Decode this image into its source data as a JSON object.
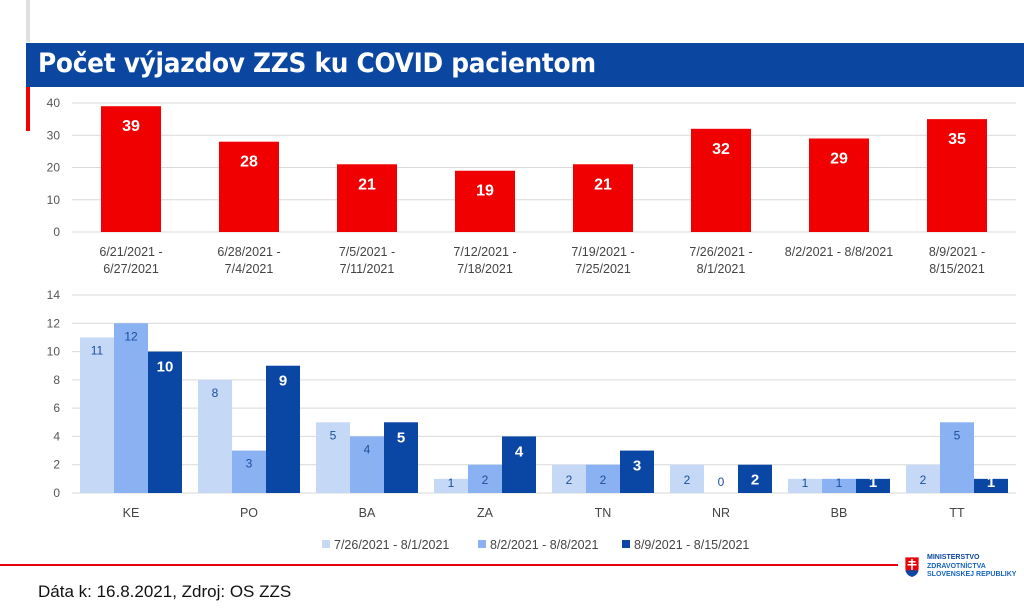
{
  "page": {
    "title": "Počet výjazdov ZZS ku COVID pacientom",
    "footer_text": "Dáta k: 16.8.2021, Zdroj: OS ZZS",
    "logo": {
      "line1": "MINISTERSTVO",
      "line2": "ZDRAVOTNÍCTVA",
      "line3": "SLOVENSKEJ REPUBLIKY",
      "icon": "slovak-coat-of-arms-icon"
    },
    "colors": {
      "title_bar": "#0b47a1",
      "accent_red": "#f00000",
      "series1": "#c5d9f7",
      "series2": "#8ab2f2",
      "series3": "#0a47a5"
    }
  },
  "chart_data": [
    {
      "type": "bar",
      "title": "Počet výjazdov ZZS ku COVID pacientom",
      "categories": [
        [
          "6/21/2021 -",
          "6/27/2021"
        ],
        [
          "6/28/2021 -",
          "7/4/2021"
        ],
        [
          "7/5/2021 -",
          "7/11/2021"
        ],
        [
          "7/12/2021 -",
          "7/18/2021"
        ],
        [
          "7/19/2021 -",
          "7/25/2021"
        ],
        [
          "7/26/2021 -",
          "8/1/2021"
        ],
        [
          "8/2/2021 - 8/8/2021"
        ],
        [
          "8/9/2021 -",
          "8/15/2021"
        ]
      ],
      "values": [
        39,
        28,
        21,
        19,
        21,
        32,
        29,
        35
      ],
      "color": "#f00000",
      "xlabel": "",
      "ylabel": "",
      "ylim": [
        0,
        40
      ],
      "yticks": [
        0,
        10,
        20,
        30,
        40
      ],
      "grid": true,
      "data_labels": true
    },
    {
      "type": "bar",
      "categories": [
        "KE",
        "PO",
        "BA",
        "ZA",
        "TN",
        "NR",
        "BB",
        "TT"
      ],
      "series": [
        {
          "name": "7/26/2021 - 8/1/2021",
          "values": [
            11,
            8,
            5,
            1,
            2,
            2,
            1,
            2
          ],
          "color": "#c5d9f7"
        },
        {
          "name": "8/2/2021 - 8/8/2021",
          "values": [
            12,
            3,
            4,
            2,
            2,
            0,
            1,
            5
          ],
          "color": "#8ab2f2"
        },
        {
          "name": "8/9/2021 - 8/15/2021",
          "values": [
            10,
            9,
            5,
            4,
            3,
            2,
            1,
            1
          ],
          "color": "#0a47a5"
        }
      ],
      "xlabel": "",
      "ylabel": "",
      "ylim": [
        0,
        14
      ],
      "yticks": [
        0,
        2,
        4,
        6,
        8,
        10,
        12,
        14
      ],
      "grid": true,
      "legend": "bottom",
      "data_labels": true
    }
  ]
}
